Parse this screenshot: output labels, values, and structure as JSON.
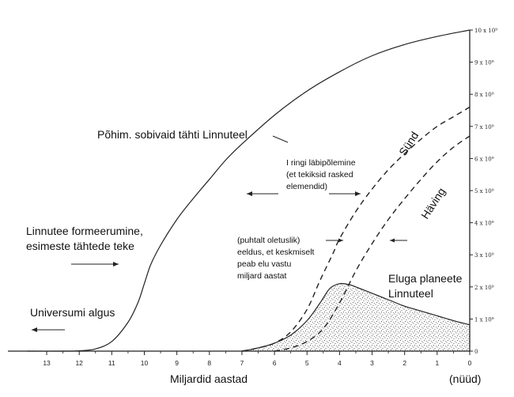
{
  "chart_data": {
    "type": "line",
    "xlabel": "Miljardid aastad",
    "x_now_label": "(nüüd)",
    "xlim": [
      13.6,
      0
    ],
    "ylim": [
      0,
      10
    ],
    "x_ticks": [
      "13",
      "12",
      "11",
      "10",
      "9",
      "8",
      "7",
      "6",
      "5",
      "4",
      "3",
      "2",
      "1",
      "0"
    ],
    "y_ticks": [
      "0",
      "1 x 10⁹",
      "2 x 10⁹",
      "3 x 10⁹",
      "4 x 10⁹",
      "5 x 10⁹",
      "6 x 10⁹",
      "7 x 10⁹",
      "8 x 10⁹",
      "9 x 10⁹",
      "10 x 10⁹"
    ],
    "series": [
      {
        "name": "Põhim. sobivaid tähti Linnuteel",
        "style": "solid",
        "x": [
          13.6,
          12.5,
          12,
          11.5,
          11,
          10.5,
          10.2,
          10,
          9.8,
          9.5,
          9.0,
          8.5,
          8.0,
          7.5,
          7.0,
          6.0,
          5.0,
          4.0,
          3.0,
          2.0,
          1.0,
          0
        ],
        "y": [
          0,
          0,
          0.01,
          0.07,
          0.3,
          0.9,
          1.5,
          2.1,
          2.7,
          3.3,
          4.1,
          4.75,
          5.35,
          5.95,
          6.45,
          7.35,
          8.1,
          8.7,
          9.2,
          9.55,
          9.8,
          10.0
        ]
      },
      {
        "name": "Sünd",
        "style": "dashed",
        "x": [
          7.0,
          6.5,
          6.0,
          5.5,
          5.0,
          4.6,
          4.2,
          4.0,
          3.5,
          3.0,
          2.5,
          2.0,
          1.5,
          1.0,
          0.5,
          0
        ],
        "y": [
          0,
          0.1,
          0.25,
          0.6,
          1.3,
          2.2,
          3.05,
          3.5,
          4.35,
          5.05,
          5.65,
          6.15,
          6.6,
          7.0,
          7.3,
          7.6
        ]
      },
      {
        "name": "Häving",
        "style": "dashed",
        "x": [
          6.0,
          5.5,
          5.0,
          4.5,
          4.0,
          3.5,
          3.0,
          2.5,
          2.0,
          1.5,
          1.0,
          0.5,
          0
        ],
        "y": [
          0,
          0.1,
          0.3,
          0.7,
          1.5,
          2.5,
          3.35,
          4.1,
          4.75,
          5.35,
          5.9,
          6.35,
          6.7
        ]
      },
      {
        "name": "Eluga planeete Linnuteel",
        "style": "stippled-area",
        "x": [
          7.0,
          6.5,
          6.0,
          5.5,
          5.0,
          4.6,
          4.3,
          4.0,
          3.7,
          3.5,
          3.0,
          2.5,
          2.0,
          1.5,
          1.0,
          0.5,
          0
        ],
        "y": [
          0,
          0.1,
          0.25,
          0.5,
          0.95,
          1.5,
          1.95,
          2.1,
          2.07,
          2.0,
          1.8,
          1.6,
          1.4,
          1.25,
          1.1,
          0.95,
          0.82
        ]
      }
    ],
    "annotations": {
      "stars_label": "Põhim. sobivaid tähti Linnuteel",
      "galaxy_formation_1": "Linnutee formeerumine,",
      "galaxy_formation_2": "esimeste tähtede teke",
      "universe_start": "Universumi algus",
      "cycle_1": "I ringi läbipõlemine",
      "cycle_2": "(et tekiksid rasked",
      "cycle_3": "elemendid)",
      "assumption_1": "(puhtalt oletuslik)",
      "assumption_2": "eeldus, et keskmiselt",
      "assumption_3": "peab elu vastu",
      "assumption_4": "miljard aastat",
      "birth": "Sünd",
      "extinction": "Häving",
      "planets_1": "Eluga planeete",
      "planets_2": "Linnuteel"
    }
  }
}
